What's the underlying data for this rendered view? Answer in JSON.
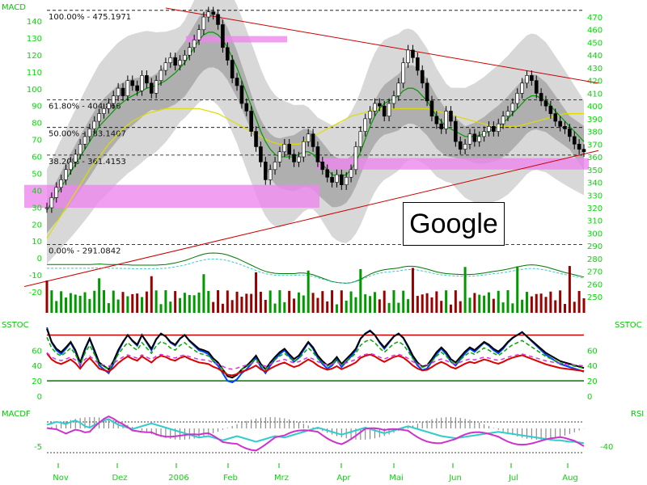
{
  "panel_labels": {
    "macd": "MACD",
    "sstoc_left": "SSTOC",
    "sstoc_right": "SSTOC",
    "macdf": "MACDF",
    "rsi": "RSI"
  },
  "watermark": "Google",
  "colors": {
    "price_axis": "#00ff00",
    "bars": "#000000",
    "ma_green": "#009900",
    "ma_yellow": "#dddd00",
    "trend": "#cc0000",
    "zone": "#ee88ee",
    "band": "#c8c8c8"
  },
  "chart_data": [
    {
      "type": "line",
      "title": "",
      "series_kind": "ohlc-price-with-fibonacci",
      "x_ticks": [
        "Nov",
        "Dez",
        "2006",
        "Feb",
        "Mrz",
        "Apr",
        "Mai",
        "Jun",
        "Jul",
        "Aug"
      ],
      "y_ticks_right": [
        250,
        260,
        270,
        280,
        290,
        300,
        310,
        320,
        330,
        340,
        350,
        360,
        370,
        380,
        390,
        400,
        410,
        420,
        430,
        440,
        450,
        460,
        470
      ],
      "y_ticks_left": [
        -20,
        -10,
        0,
        10,
        20,
        30,
        40,
        50,
        60,
        70,
        80,
        90,
        100,
        110,
        120,
        130,
        140
      ],
      "ylim": [
        245,
        477
      ],
      "fibonacci": [
        {
          "label": "100.00% - 475.1971",
          "value": 475.1971
        },
        {
          "label": "61.80% - 404.866",
          "value": 404.866
        },
        {
          "label": "50.00% - 383.1407",
          "value": 383.1407
        },
        {
          "label": "38.20% - 361.4153",
          "value": 361.4153
        },
        {
          "label": "0.00% - 291.0842",
          "value": 291.0842
        }
      ],
      "close": [
        320,
        328,
        336,
        342,
        350,
        356,
        362,
        370,
        376,
        382,
        388,
        394,
        398,
        402,
        408,
        414,
        408,
        420,
        416,
        412,
        424,
        418,
        410,
        420,
        428,
        434,
        438,
        432,
        436,
        440,
        446,
        452,
        460,
        470,
        474,
        472,
        464,
        446,
        436,
        422,
        416,
        402,
        396,
        380,
        368,
        356,
        342,
        350,
        356,
        364,
        370,
        362,
        356,
        360,
        372,
        378,
        368,
        356,
        350,
        344,
        340,
        346,
        338,
        344,
        350,
        368,
        380,
        390,
        396,
        402,
        400,
        392,
        402,
        408,
        418,
        434,
        444,
        438,
        428,
        418,
        404,
        392,
        386,
        382,
        396,
        388,
        372,
        366,
        370,
        378,
        372,
        376,
        380,
        384,
        380,
        386,
        392,
        396,
        402,
        410,
        418,
        424,
        420,
        410,
        404,
        400,
        394,
        388,
        384,
        382,
        376,
        370,
        366,
        364
      ],
      "ma_fast": [
        318,
        324,
        330,
        336,
        342,
        348,
        354,
        360,
        366,
        372,
        378,
        384,
        388,
        392,
        396,
        400,
        403,
        406,
        408,
        410,
        412,
        414,
        415,
        416,
        418,
        420,
        423,
        426,
        430,
        434,
        440,
        446,
        452,
        456,
        458,
        458,
        456,
        452,
        446,
        438,
        430,
        420,
        410,
        400,
        390,
        380,
        372,
        366,
        362,
        360,
        360,
        360,
        360,
        362,
        364,
        364,
        362,
        358,
        354,
        350,
        346,
        345,
        345,
        346,
        350,
        356,
        364,
        374,
        384,
        392,
        398,
        402,
        404,
        406,
        408,
        412,
        414,
        414,
        412,
        408,
        404,
        398,
        392,
        388,
        384,
        382,
        380,
        378,
        376,
        376,
        376,
        377,
        378,
        380,
        382,
        384,
        387,
        390,
        394,
        398,
        402,
        406,
        408,
        408,
        406,
        404,
        400,
        396,
        392,
        388,
        384,
        380,
        376,
        372
      ],
      "ma_slow": [
        296,
        302,
        308,
        314,
        320,
        326,
        332,
        338,
        344,
        350,
        355,
        360,
        365,
        370,
        374,
        378,
        382,
        385,
        388,
        390,
        392,
        394,
        395,
        396,
        397,
        398,
        398,
        398,
        398,
        398,
        398,
        398,
        398,
        397,
        396,
        395,
        394,
        392,
        390,
        388,
        386,
        384,
        382,
        380,
        378,
        376,
        374,
        372,
        371,
        370,
        370,
        370,
        370,
        370,
        372,
        374,
        376,
        378,
        380,
        382,
        384,
        386,
        388,
        390,
        392,
        393,
        394,
        395,
        396,
        397,
        398,
        398,
        398,
        398,
        398,
        398,
        398,
        398,
        398,
        398,
        398,
        397,
        396,
        395,
        394,
        393,
        392,
        391,
        390,
        389,
        388,
        387,
        386,
        385,
        384,
        384,
        384,
        384,
        384,
        384,
        385,
        386,
        387,
        388,
        389,
        390,
        391,
        392,
        393,
        394,
        394,
        394,
        394,
        394
      ],
      "trend_lines": [
        {
          "from": [
            "Nov",
            260
          ],
          "to": [
            "Aug",
            363
          ]
        },
        {
          "from": [
            "2006",
            478
          ],
          "to": [
            "Aug",
            418
          ]
        }
      ],
      "support_zones": [
        {
          "low": 320,
          "high": 338
        },
        {
          "low": 350,
          "high": 359
        },
        {
          "low": 450,
          "high": 455
        }
      ]
    },
    {
      "type": "line",
      "title": "",
      "series": [
        {
          "name": "",
          "values": [
            90,
            70,
            60,
            55,
            62,
            70,
            58,
            40,
            60,
            75,
            58,
            40,
            35,
            30,
            42,
            58,
            70,
            80,
            72,
            66,
            80,
            70,
            60,
            74,
            82,
            78,
            70,
            66,
            75,
            80,
            72,
            66,
            60,
            58,
            55,
            46,
            40,
            30,
            20,
            18,
            22,
            30,
            35,
            42,
            50,
            38,
            30,
            40,
            48,
            55,
            60,
            52,
            45,
            50,
            60,
            70,
            62,
            50,
            42,
            36,
            40,
            48,
            38,
            45,
            52,
            60,
            75,
            82,
            86,
            80,
            70,
            62,
            70,
            78,
            82,
            76,
            64,
            50,
            40,
            34,
            36,
            45,
            55,
            62,
            55,
            45,
            40,
            48,
            56,
            62,
            58,
            64,
            70,
            66,
            60,
            56,
            62,
            70,
            76,
            80,
            84,
            78,
            72,
            66,
            60,
            54,
            50,
            46,
            42,
            40,
            38,
            36,
            34,
            32
          ]
        }
      ],
      "y_ticks": [
        0,
        20,
        40,
        60
      ],
      "ylim": [
        0,
        90
      ],
      "reference_lines": [
        20,
        80
      ]
    },
    {
      "type": "line",
      "title": "",
      "series": [
        {
          "name": "",
          "values": [
            52,
            54,
            56,
            55,
            53,
            56,
            58,
            55,
            50,
            48,
            52,
            55,
            58,
            60,
            56,
            52,
            50,
            48,
            46,
            48,
            50,
            52,
            54,
            52,
            50,
            48,
            46,
            44,
            42,
            40,
            38,
            36,
            34,
            35,
            36,
            34,
            32,
            30,
            32,
            34,
            36,
            34,
            32,
            30,
            28,
            30,
            32,
            34,
            36,
            35,
            34,
            36,
            38,
            40,
            42,
            44,
            46,
            48,
            46,
            44,
            42,
            40,
            38,
            40,
            42,
            44,
            46,
            48,
            46,
            44,
            42,
            40,
            42,
            44,
            46,
            48,
            50,
            48,
            46,
            44,
            42,
            40,
            38,
            36,
            35,
            34,
            33,
            34,
            35,
            36,
            37,
            38,
            39,
            40,
            41,
            42,
            41,
            40,
            39,
            38,
            37,
            36,
            35,
            34,
            33,
            32,
            31,
            30,
            30,
            29,
            28,
            28,
            27,
            26
          ]
        }
      ],
      "y_ticks": [
        -5,
        -40
      ],
      "ylim": [
        0,
        80
      ]
    }
  ]
}
